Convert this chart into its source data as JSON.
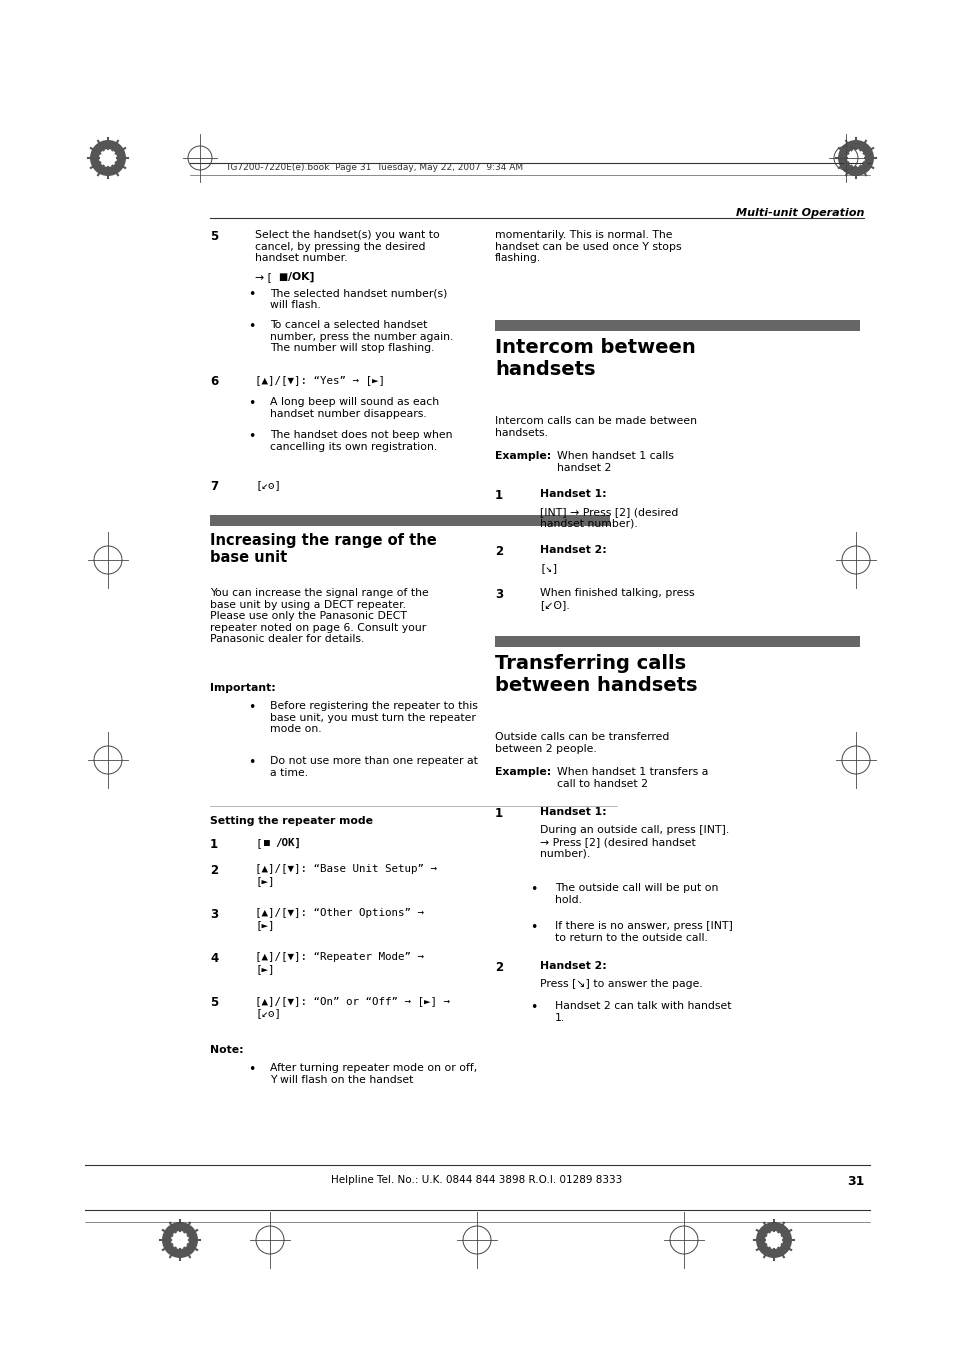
{
  "page_bg": "#ffffff",
  "text_color": "#000000",
  "footer_text": "Helpline Tel. No.: U.K. 0844 844 3898 R.O.I. 01289 8333",
  "page_number": "31",
  "header_book_info": "TG7200-7220E(e).book  Page 31  Tuesday, May 22, 2007  9:34 AM",
  "section_label": "Multi-unit Operation",
  "gray_bar_color": "#666666",
  "line_color": "#333333",
  "sep_line_color": "#999999"
}
